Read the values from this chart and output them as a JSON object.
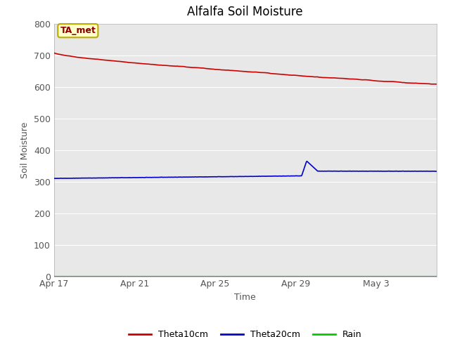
{
  "title": "Alfalfa Soil Moisture",
  "xlabel": "Time",
  "ylabel": "Soil Moisture",
  "ylim": [
    0,
    800
  ],
  "yticks": [
    0,
    100,
    200,
    300,
    400,
    500,
    600,
    700,
    800
  ],
  "xtick_dates": [
    "Apr 17",
    "Apr 21",
    "Apr 25",
    "Apr 29",
    "May 3"
  ],
  "xtick_days_offset": [
    0,
    4,
    8,
    12,
    16
  ],
  "total_days": 19,
  "legend_entries": [
    "Theta10cm",
    "Theta20cm",
    "Rain"
  ],
  "legend_colors": [
    "#cc0000",
    "#0000cc",
    "#00cc00"
  ],
  "annotation_text": "TA_met",
  "annotation_box_facecolor": "#ffffcc",
  "annotation_box_edgecolor": "#bbaa00",
  "annotation_text_color": "#880000",
  "theta10cm_color": "#cc0000",
  "theta20cm_color": "#0000cc",
  "rain_color": "#00cc00",
  "fig_bg_color": "#ffffff",
  "axes_bg_color": "#e8e8e8",
  "grid_color": "#ffffff",
  "tick_label_color": "#555555",
  "spine_color": "#aaaaaa"
}
